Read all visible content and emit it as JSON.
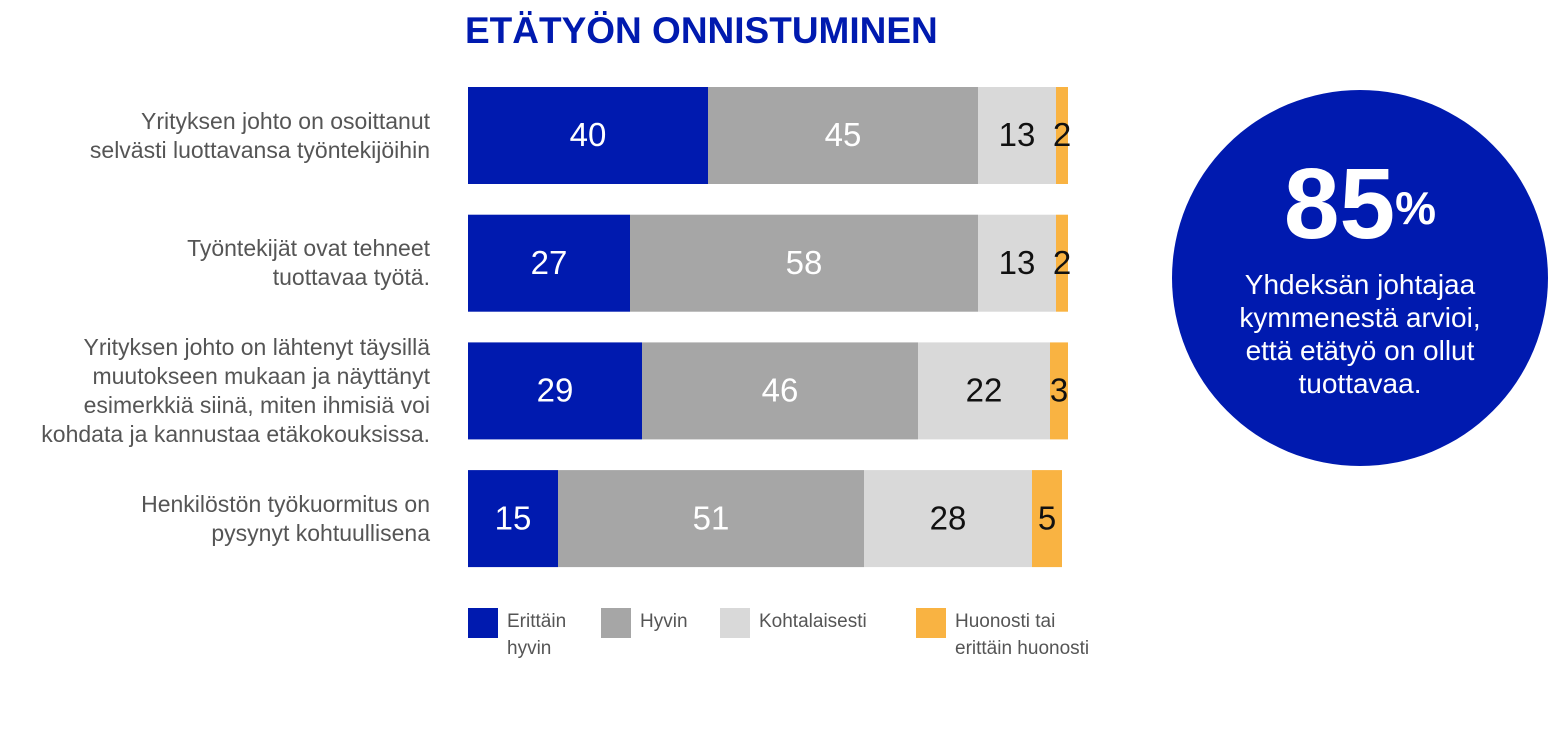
{
  "chart_data": {
    "type": "stacked_bar_horizontal",
    "title": "ETÄTYÖN ONNISTUMINEN",
    "categories": [
      "Yrityksen johto on osoittanut\nselvästi luottavansa työntekijöihin",
      "Työntekijät ovat tehneet\ntuottavaa työtä.",
      "Yrityksen johto on lähtenyt täysillä\nmuutokseen mukaan ja näyttänyt\nesimerkkiä siinä, miten ihmisiä voi\nkohdata ja kannustaa etäkokouksissa.",
      "Henkilöstön työkuormitus on\npysynyt kohtuullisena"
    ],
    "series": [
      {
        "name": "Erittäin\nhyvin",
        "color": "#001aaf",
        "label_color": "#ffffff",
        "values": [
          40,
          27,
          29,
          15
        ]
      },
      {
        "name": "Hyvin",
        "color": "#a6a6a6",
        "label_color": "#ffffff",
        "values": [
          45,
          58,
          46,
          51
        ]
      },
      {
        "name": "Kohtalaisesti",
        "color": "#d9d9d9",
        "label_color": "#111111",
        "values": [
          13,
          13,
          22,
          28
        ]
      },
      {
        "name": "Huonosti tai\nerittäin huonosti",
        "color": "#f9b342",
        "label_color": "#111111",
        "values": [
          2,
          2,
          3,
          5
        ]
      }
    ],
    "xlim": [
      0,
      100
    ],
    "callout": {
      "number": 85,
      "unit": "%",
      "text": "Yhdeksän johtajaa\nkymmenestä arvioi,\nettä etätyö on ollut\ntuottavaa.",
      "color": "#001aaf"
    }
  }
}
